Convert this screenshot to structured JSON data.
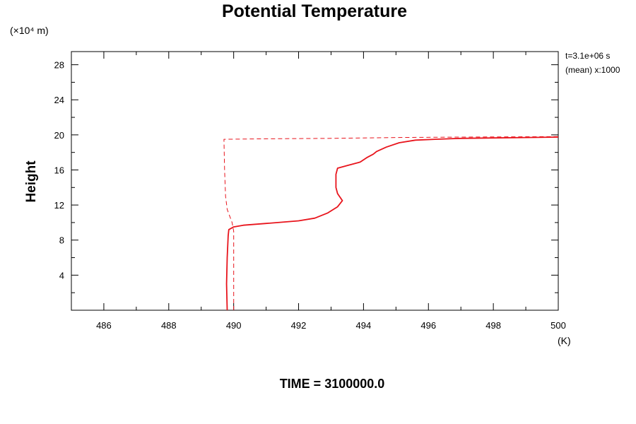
{
  "chart_data": {
    "type": "line",
    "title": "Potential Temperature",
    "ylabel": "Height",
    "y_unit_label": "(×10⁴ m)",
    "x_unit_label": "(K)",
    "xlim": [
      485,
      500
    ],
    "ylim": [
      0,
      29.5
    ],
    "x_ticks": [
      "486",
      "488",
      "490",
      "492",
      "494",
      "496",
      "498",
      "500"
    ],
    "y_ticks": [
      "4",
      "8",
      "12",
      "16",
      "20",
      "24",
      "28"
    ],
    "annotations": [
      "t=3.1e+06 s",
      "(mean) x:1000"
    ],
    "caption": "TIME = 3100000.0",
    "grid": false,
    "series": [
      {
        "style": "solid",
        "color": "#e8141c",
        "points": [
          [
            489.8,
            0.0
          ],
          [
            489.78,
            3.0
          ],
          [
            489.8,
            6.0
          ],
          [
            489.83,
            8.5
          ],
          [
            489.85,
            9.2
          ],
          [
            490.0,
            9.5
          ],
          [
            490.3,
            9.7
          ],
          [
            491.0,
            9.9
          ],
          [
            492.0,
            10.2
          ],
          [
            492.5,
            10.5
          ],
          [
            492.9,
            11.1
          ],
          [
            493.2,
            11.8
          ],
          [
            493.35,
            12.5
          ],
          [
            493.2,
            13.3
          ],
          [
            493.15,
            14.0
          ],
          [
            493.15,
            14.8
          ],
          [
            493.15,
            15.5
          ],
          [
            493.2,
            16.2
          ],
          [
            493.5,
            16.5
          ],
          [
            493.9,
            16.9
          ],
          [
            494.1,
            17.4
          ],
          [
            494.3,
            17.8
          ],
          [
            494.4,
            18.1
          ],
          [
            494.7,
            18.6
          ],
          [
            495.1,
            19.1
          ],
          [
            495.6,
            19.4
          ],
          [
            496.2,
            19.5
          ],
          [
            497.0,
            19.6
          ],
          [
            498.0,
            19.65
          ],
          [
            499.0,
            19.7
          ],
          [
            500.0,
            19.75
          ]
        ]
      },
      {
        "style": "dashed",
        "color": "#e8141c",
        "points": [
          [
            490.0,
            0.0
          ],
          [
            490.0,
            4.0
          ],
          [
            490.0,
            9.0
          ],
          [
            489.95,
            10.0
          ],
          [
            489.8,
            11.5
          ],
          [
            489.75,
            13.0
          ],
          [
            489.72,
            16.0
          ],
          [
            489.7,
            19.5
          ],
          [
            491.0,
            19.55
          ],
          [
            493.0,
            19.6
          ],
          [
            495.0,
            19.7
          ],
          [
            497.0,
            19.75
          ],
          [
            500.0,
            19.8
          ]
        ]
      }
    ]
  }
}
